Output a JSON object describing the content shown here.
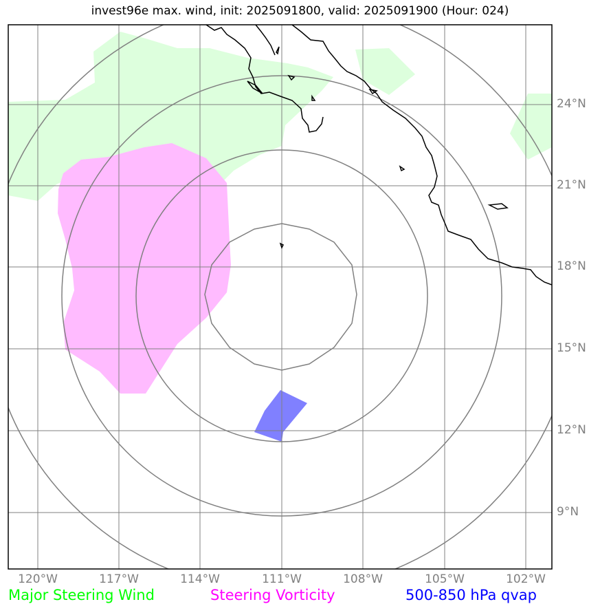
{
  "title": "invest96e max. wind, init: 2025091800, valid: 2025091900 (Hour: 024)",
  "map": {
    "longitude_ticks": [
      "120°W",
      "117°W",
      "114°W",
      "111°W",
      "108°W",
      "105°W",
      "102°W"
    ],
    "latitude_ticks": [
      "24°N",
      "21°N",
      "18°N",
      "15°N",
      "12°N",
      "9°N"
    ],
    "range_rings_center": {
      "lon": -111,
      "lat": 17
    },
    "range_ring_count": 4,
    "gridline_color": "#808080",
    "coastline_color": "#000000"
  },
  "legend": {
    "steering_wind": {
      "label": "Major Steering Wind",
      "color": "#00ff00"
    },
    "steering_vorticity": {
      "label": "Steering Vorticity",
      "color": "#ff00ff"
    },
    "qvap": {
      "label": "500-850 hPa qvap",
      "color": "#0000ff"
    }
  },
  "overlays": {
    "steering_wind_fill": "#ddffdd",
    "steering_vorticity_fill": "#ffbbff",
    "qvap_fill": "#8080ff"
  }
}
